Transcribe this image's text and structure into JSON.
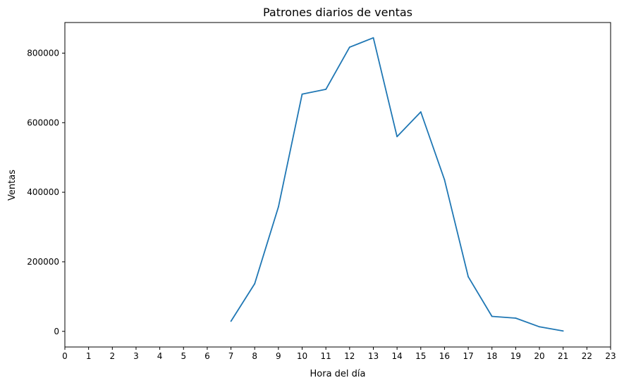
{
  "chart_data": {
    "type": "line",
    "title": "Patrones diarios de ventas",
    "xlabel": "Hora del día",
    "ylabel": "Ventas",
    "xlim": [
      0,
      23
    ],
    "ylim": [
      -45000,
      888000
    ],
    "x_ticks": [
      0,
      1,
      2,
      3,
      4,
      5,
      6,
      7,
      8,
      9,
      10,
      11,
      12,
      13,
      14,
      15,
      16,
      17,
      18,
      19,
      20,
      21,
      22,
      23
    ],
    "y_ticks": [
      0,
      200000,
      400000,
      600000,
      800000
    ],
    "grid": false,
    "series": [
      {
        "color": "#1f77b4",
        "x": [
          7,
          8,
          9,
          10,
          11,
          12,
          13,
          14,
          15,
          16,
          17,
          18,
          19,
          20,
          21
        ],
        "values": [
          29000,
          137000,
          358000,
          682000,
          696000,
          817000,
          844000,
          560000,
          631000,
          436000,
          157000,
          43000,
          38000,
          13000,
          1000
        ]
      }
    ]
  }
}
